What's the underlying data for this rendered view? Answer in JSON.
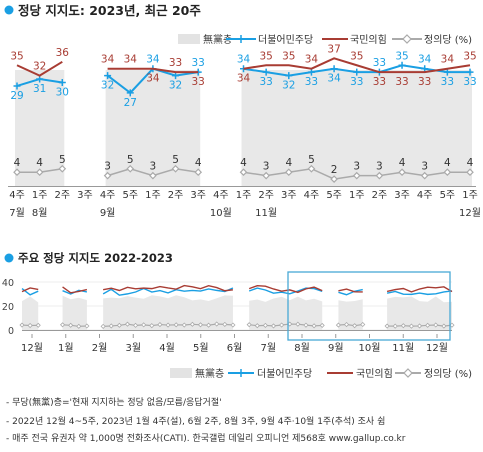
{
  "top": {
    "title": "정당 지지도: 2023년, 최근 20주",
    "legend": [
      {
        "key": "none",
        "label": "無黨층",
        "color": "#e3e3e3"
      },
      {
        "key": "dem",
        "label": "더불어민주당",
        "color": "#1a9fe3"
      },
      {
        "key": "ppp",
        "label": "국민의힘",
        "color": "#a83c33"
      },
      {
        "key": "just",
        "label": "정의당 (%)",
        "color": "#aaaaaa"
      }
    ]
  },
  "bottom": {
    "title": "주요 정당 지지도 2022-2023",
    "legend": [
      {
        "key": "none",
        "label": "無黨층"
      },
      {
        "key": "dem",
        "label": "더불어민주당"
      },
      {
        "key": "ppp",
        "label": "국민의힘"
      },
      {
        "key": "just",
        "label": "정의당 (%)"
      }
    ]
  },
  "chart_data": [
    {
      "type": "line",
      "title": "정당 지지도: 2023년, 최근 20주",
      "categories": [
        "4주",
        "1주",
        "2주",
        "3주",
        "4주",
        "5주",
        "1주",
        "2주",
        "3주",
        "4주",
        "1주",
        "2주",
        "3주",
        "4주",
        "5주",
        "1주",
        "2주",
        "3주",
        "4주",
        "5주",
        "1주"
      ],
      "month_labels": [
        {
          "label": "7월",
          "start": 0
        },
        {
          "label": "8월",
          "start": 1
        },
        {
          "label": "9월",
          "start": 4
        },
        {
          "label": "10월",
          "start": 9
        },
        {
          "label": "11월",
          "start": 11
        },
        {
          "label": "12월",
          "start": 20
        }
      ],
      "gaps_after": [
        2,
        8
      ],
      "series": [
        {
          "name": "더불어민주당",
          "color": "#1a9fe3",
          "values": [
            29,
            31,
            30,
            null,
            32,
            27,
            34,
            32,
            33,
            null,
            34,
            33,
            32,
            33,
            34,
            33,
            33,
            35,
            34,
            33,
            33
          ]
        },
        {
          "name": "국민의힘",
          "color": "#a83c33",
          "values": [
            35,
            32,
            36,
            null,
            34,
            34,
            34,
            33,
            33,
            null,
            34,
            35,
            35,
            34,
            37,
            35,
            33,
            33,
            33,
            34,
            35
          ]
        },
        {
          "name": "정의당 (%)",
          "color": "#aaaaaa",
          "values": [
            4,
            4,
            5,
            null,
            3,
            5,
            3,
            5,
            4,
            null,
            4,
            3,
            4,
            5,
            2,
            3,
            3,
            4,
            3,
            4,
            4
          ]
        }
      ],
      "none_party_shown": true,
      "ylim": [
        0,
        40
      ]
    },
    {
      "type": "line",
      "title": "주요 정당 지지도 2022-2023",
      "month_labels": [
        "12월",
        "1월",
        "2월",
        "3월",
        "4월",
        "5월",
        "6월",
        "7월",
        "8월",
        "9월",
        "10월",
        "11월",
        "12월"
      ],
      "series": [
        {
          "name": "더불어민주당",
          "color": "#1a9fe3"
        },
        {
          "name": "국민의힘",
          "color": "#a83c33"
        },
        {
          "name": "정의당 (%)",
          "color": "#aaaaaa"
        }
      ],
      "none_party_shown": true,
      "y_ticks": [
        0,
        20,
        40
      ],
      "ylim": [
        0,
        40
      ]
    }
  ],
  "notes": [
    "- 무당(無黨)층='현재 지지하는 정당 없음/모름/응답거절'",
    "- 2022년 12월 4~5주, 2023년 1월 4주(설), 6월 2주, 8월 3주, 9월 4주·10월 1주(추석) 조사 쉼",
    "- 매주 전국 유권자 약 1,000명 전화조사(CATI). 한국갤럽 데일리 오피니언 제568호 www.gallup.co.kr"
  ]
}
